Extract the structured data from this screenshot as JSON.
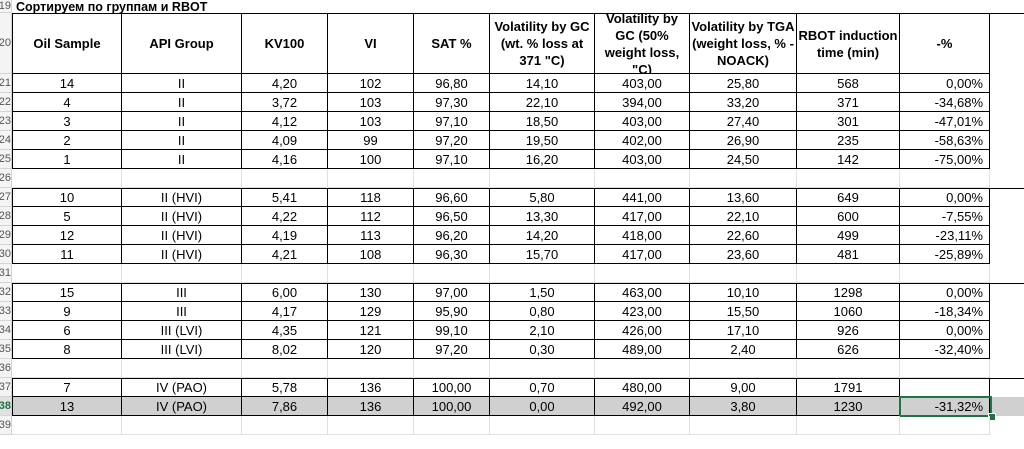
{
  "sheet_title": "Сортируем по группам и RBOT",
  "columns": [
    {
      "label": "Oil Sample",
      "align": "center"
    },
    {
      "label": "API Group",
      "align": "center"
    },
    {
      "label": "KV100",
      "align": "center"
    },
    {
      "label": "VI",
      "align": "center"
    },
    {
      "label": "SAT %",
      "align": "center"
    },
    {
      "label": "Volatility by GC (wt. % loss at 371 \"C)",
      "align": "center"
    },
    {
      "label": "Volatility by GC (50% weight loss, \"C)",
      "align": "center"
    },
    {
      "label": "Volatility by TGA (weight loss, % - NOACK)",
      "align": "center"
    },
    {
      "label": "RBOT induction time (min)",
      "align": "center"
    },
    {
      "label": "-%",
      "align": "right"
    }
  ],
  "rows": [
    {
      "num": "19",
      "type": "title"
    },
    {
      "num": "20",
      "type": "header"
    },
    {
      "num": "21",
      "type": "data",
      "cells": [
        "14",
        "II",
        "4,20",
        "102",
        "96,80",
        "14,10",
        "403,00",
        "25,80",
        "568",
        "0,00%"
      ]
    },
    {
      "num": "22",
      "type": "data",
      "cells": [
        "4",
        "II",
        "3,72",
        "103",
        "97,30",
        "22,10",
        "394,00",
        "33,20",
        "371",
        "-34,68%"
      ]
    },
    {
      "num": "23",
      "type": "data",
      "cells": [
        "3",
        "II",
        "4,12",
        "103",
        "97,10",
        "18,50",
        "403,00",
        "27,40",
        "301",
        "-47,01%"
      ]
    },
    {
      "num": "24",
      "type": "data",
      "cells": [
        "2",
        "II",
        "4,09",
        "99",
        "97,20",
        "19,50",
        "402,00",
        "26,90",
        "235",
        "-58,63%"
      ]
    },
    {
      "num": "25",
      "type": "data",
      "cells": [
        "1",
        "II",
        "4,16",
        "100",
        "97,10",
        "16,20",
        "403,00",
        "24,50",
        "142",
        "-75,00%"
      ]
    },
    {
      "num": "26",
      "type": "empty"
    },
    {
      "num": "27",
      "type": "data",
      "cells": [
        "10",
        "II (HVI)",
        "5,41",
        "118",
        "96,60",
        "5,80",
        "441,00",
        "13,60",
        "649",
        "0,00%"
      ]
    },
    {
      "num": "28",
      "type": "data",
      "cells": [
        "5",
        "II (HVI)",
        "4,22",
        "112",
        "96,50",
        "13,30",
        "417,00",
        "22,10",
        "600",
        "-7,55%"
      ]
    },
    {
      "num": "29",
      "type": "data",
      "cells": [
        "12",
        "II (HVI)",
        "4,19",
        "113",
        "96,20",
        "14,20",
        "418,00",
        "22,60",
        "499",
        "-23,11%"
      ]
    },
    {
      "num": "30",
      "type": "data",
      "cells": [
        "11",
        "II (HVI)",
        "4,21",
        "108",
        "96,30",
        "15,70",
        "417,00",
        "23,60",
        "481",
        "-25,89%"
      ]
    },
    {
      "num": "31",
      "type": "empty"
    },
    {
      "num": "32",
      "type": "data",
      "cells": [
        "15",
        "III",
        "6,00",
        "130",
        "97,00",
        "1,50",
        "463,00",
        "10,10",
        "1298",
        "0,00%"
      ]
    },
    {
      "num": "33",
      "type": "data",
      "cells": [
        "9",
        "III",
        "4,17",
        "129",
        "95,90",
        "0,80",
        "423,00",
        "15,50",
        "1060",
        "-18,34%"
      ]
    },
    {
      "num": "34",
      "type": "data",
      "cells": [
        "6",
        "III (LVI)",
        "4,35",
        "121",
        "99,10",
        "2,10",
        "426,00",
        "17,10",
        "926",
        "0,00%"
      ]
    },
    {
      "num": "35",
      "type": "data",
      "cells": [
        "8",
        "III (LVI)",
        "8,02",
        "120",
        "97,20",
        "0,30",
        "489,00",
        "2,40",
        "626",
        "-32,40%"
      ]
    },
    {
      "num": "36",
      "type": "empty"
    },
    {
      "num": "37",
      "type": "data",
      "cells": [
        "7",
        "IV (PAO)",
        "5,78",
        "136",
        "100,00",
        "0,70",
        "480,00",
        "9,00",
        "1791",
        ""
      ]
    },
    {
      "num": "38",
      "type": "data",
      "selected": true,
      "cells": [
        "13",
        "IV (PAO)",
        "7,86",
        "136",
        "100,00",
        "0,00",
        "492,00",
        "3,80",
        "1230",
        "-31,32%"
      ]
    },
    {
      "num": "39",
      "type": "empty"
    }
  ],
  "colors": {
    "grid": "#e0e0e0",
    "border": "#000000",
    "selected_row": "#d0d0d0",
    "active_cell": "#217346"
  }
}
